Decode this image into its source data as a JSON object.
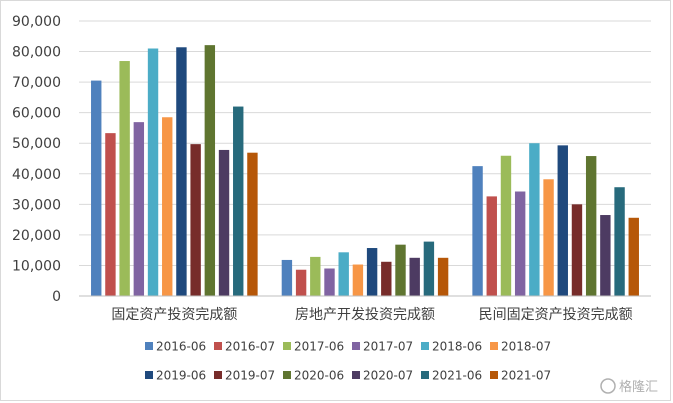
{
  "chart_data": {
    "type": "bar",
    "title": "",
    "xlabel": "",
    "ylabel": "",
    "ylim": [
      0,
      90000
    ],
    "yticks": [
      0,
      10000,
      20000,
      30000,
      40000,
      50000,
      60000,
      70000,
      80000,
      90000
    ],
    "ytick_labels": [
      "0",
      "10,000",
      "20,000",
      "30,000",
      "40,000",
      "50,000",
      "60,000",
      "70,000",
      "80,000",
      "90,000"
    ],
    "categories": [
      "固定资产投资完成额",
      "房地产开发投资完成额",
      "民间固定资产投资完成额"
    ],
    "grid": true,
    "legend_position": "bottom",
    "series": [
      {
        "name": "2016-06",
        "color": "#4f81bd",
        "values": [
          70500,
          11800,
          42500
        ]
      },
      {
        "name": "2016-07",
        "color": "#c0504d",
        "values": [
          53300,
          8600,
          32600
        ]
      },
      {
        "name": "2017-06",
        "color": "#9bbb59",
        "values": [
          76900,
          12800,
          45900
        ]
      },
      {
        "name": "2017-07",
        "color": "#8064a2",
        "values": [
          56900,
          9000,
          34200
        ]
      },
      {
        "name": "2018-06",
        "color": "#4bacc6",
        "values": [
          81000,
          14300,
          50000
        ]
      },
      {
        "name": "2018-07",
        "color": "#f79646",
        "values": [
          58500,
          10300,
          38200
        ]
      },
      {
        "name": "2019-06",
        "color": "#1f497d",
        "values": [
          81400,
          15700,
          49300
        ]
      },
      {
        "name": "2019-07",
        "color": "#772c2a",
        "values": [
          49700,
          11200,
          30000
        ]
      },
      {
        "name": "2020-06",
        "color": "#5f7530",
        "values": [
          82100,
          16800,
          45800
        ]
      },
      {
        "name": "2020-07",
        "color": "#4d3b62",
        "values": [
          47800,
          12500,
          26500
        ]
      },
      {
        "name": "2021-06",
        "color": "#276a7c",
        "values": [
          62000,
          17800,
          35600
        ]
      },
      {
        "name": "2021-07",
        "color": "#b65708",
        "values": [
          46900,
          12500,
          25600
        ]
      }
    ]
  },
  "watermark": {
    "text": "格隆汇"
  }
}
